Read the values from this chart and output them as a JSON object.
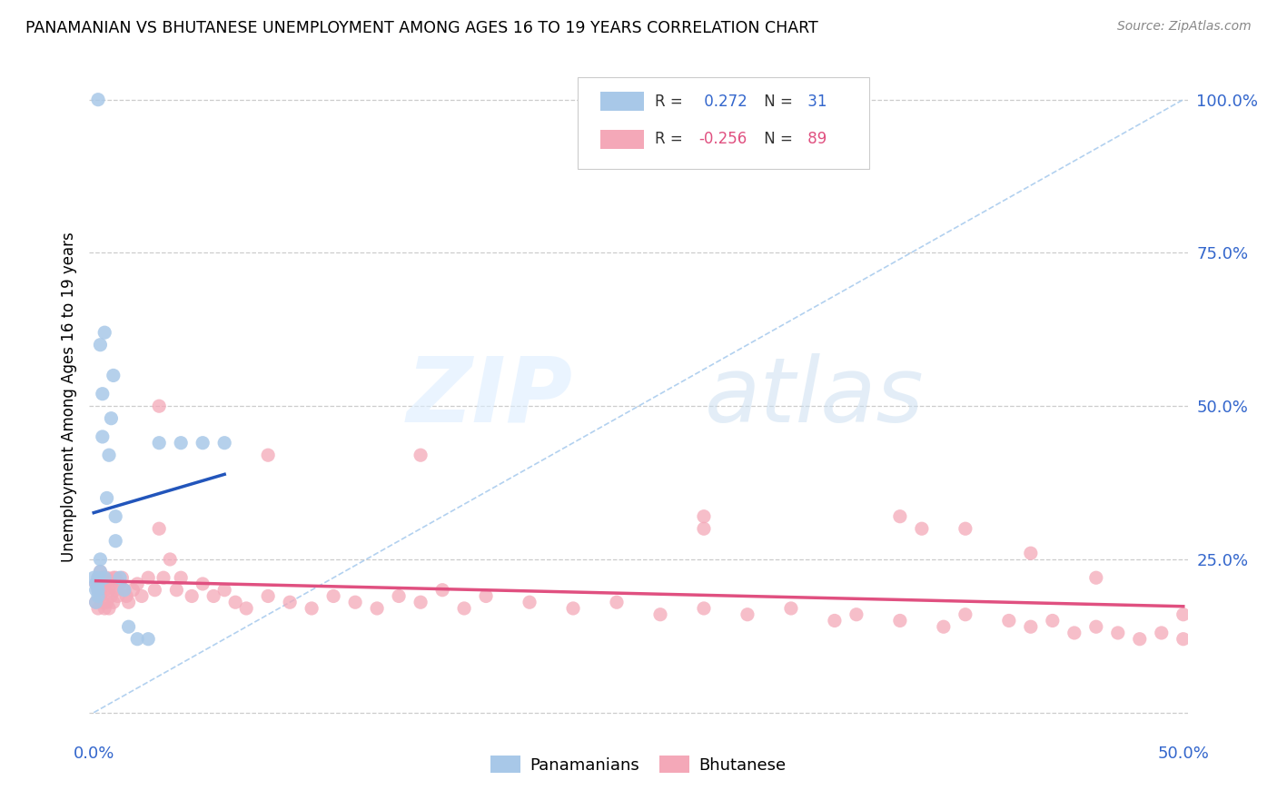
{
  "title": "PANAMANIAN VS BHUTANESE UNEMPLOYMENT AMONG AGES 16 TO 19 YEARS CORRELATION CHART",
  "source": "Source: ZipAtlas.com",
  "ylabel": "Unemployment Among Ages 16 to 19 years",
  "blue_color": "#a8c8e8",
  "blue_line_color": "#2255bb",
  "pink_color": "#f4a8b8",
  "pink_line_color": "#e05080",
  "diag_color": "#aaccee",
  "xlim": [
    -0.002,
    0.502
  ],
  "ylim": [
    -0.04,
    1.07
  ],
  "panama_x": [
    0.0,
    0.001,
    0.001,
    0.001,
    0.002,
    0.002,
    0.002,
    0.002,
    0.003,
    0.003,
    0.003,
    0.004,
    0.004,
    0.005,
    0.005,
    0.006,
    0.007,
    0.008,
    0.009,
    0.01,
    0.01,
    0.012,
    0.014,
    0.016,
    0.02,
    0.025,
    0.03,
    0.04,
    0.05,
    0.06,
    0.002
  ],
  "panama_y": [
    0.22,
    0.2,
    0.21,
    0.18,
    0.22,
    0.2,
    0.21,
    0.19,
    0.23,
    0.25,
    0.6,
    0.45,
    0.52,
    0.22,
    0.62,
    0.35,
    0.42,
    0.48,
    0.55,
    0.32,
    0.28,
    0.22,
    0.2,
    0.14,
    0.12,
    0.12,
    0.44,
    0.44,
    0.44,
    0.44,
    1.0
  ],
  "bhutan_x": [
    0.001,
    0.001,
    0.002,
    0.002,
    0.002,
    0.003,
    0.003,
    0.003,
    0.004,
    0.004,
    0.004,
    0.005,
    0.005,
    0.005,
    0.006,
    0.006,
    0.007,
    0.007,
    0.008,
    0.008,
    0.009,
    0.009,
    0.01,
    0.01,
    0.011,
    0.012,
    0.013,
    0.014,
    0.015,
    0.016,
    0.018,
    0.02,
    0.022,
    0.025,
    0.028,
    0.03,
    0.032,
    0.035,
    0.038,
    0.04,
    0.045,
    0.05,
    0.055,
    0.06,
    0.065,
    0.07,
    0.08,
    0.09,
    0.1,
    0.11,
    0.12,
    0.13,
    0.14,
    0.15,
    0.16,
    0.17,
    0.18,
    0.2,
    0.22,
    0.24,
    0.26,
    0.28,
    0.3,
    0.32,
    0.34,
    0.35,
    0.37,
    0.39,
    0.4,
    0.42,
    0.43,
    0.44,
    0.45,
    0.46,
    0.47,
    0.48,
    0.49,
    0.5,
    0.03,
    0.08,
    0.15,
    0.28,
    0.38,
    0.28,
    0.37,
    0.4,
    0.43,
    0.46,
    0.5
  ],
  "bhutan_y": [
    0.21,
    0.18,
    0.22,
    0.2,
    0.17,
    0.19,
    0.23,
    0.2,
    0.21,
    0.18,
    0.22,
    0.2,
    0.17,
    0.21,
    0.22,
    0.18,
    0.2,
    0.17,
    0.21,
    0.19,
    0.22,
    0.18,
    0.2,
    0.22,
    0.19,
    0.21,
    0.22,
    0.2,
    0.19,
    0.18,
    0.2,
    0.21,
    0.19,
    0.22,
    0.2,
    0.3,
    0.22,
    0.25,
    0.2,
    0.22,
    0.19,
    0.21,
    0.19,
    0.2,
    0.18,
    0.17,
    0.19,
    0.18,
    0.17,
    0.19,
    0.18,
    0.17,
    0.19,
    0.18,
    0.2,
    0.17,
    0.19,
    0.18,
    0.17,
    0.18,
    0.16,
    0.17,
    0.16,
    0.17,
    0.15,
    0.16,
    0.15,
    0.14,
    0.16,
    0.15,
    0.14,
    0.15,
    0.13,
    0.14,
    0.13,
    0.12,
    0.13,
    0.12,
    0.5,
    0.42,
    0.42,
    0.3,
    0.3,
    0.32,
    0.32,
    0.3,
    0.26,
    0.22,
    0.16
  ]
}
